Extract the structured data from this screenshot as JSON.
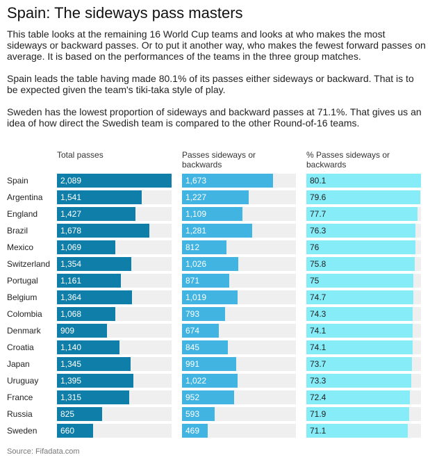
{
  "title": "Spain: The sideways pass masters",
  "intro": [
    "This table looks at the remaining 16 World Cup teams and looks at who makes the most sideways or backward passes. Or to put it another way, who makes the fewest forward passes on average. It is based on the performances of the teams in the three group matches.",
    "Spain leads the table having made 80.1% of its passes either sideways or backward. That is to be expected given the team's tiki-taka style of play.",
    "Sweden has the lowest proportion of sideways and backward passes at 71.1%. That gives us an idea of how direct the Swedish team is compared to the other Round-of-16 teams."
  ],
  "source": "Source: Fifadata.com",
  "colors": {
    "total": "#0f7ea8",
    "sideways": "#41b4e1",
    "pct": "#86ecf8",
    "track": "#efefef"
  },
  "chart_data": {
    "type": "bar",
    "orientation": "horizontal",
    "categories": [
      "Spain",
      "Argentina",
      "England",
      "Brazil",
      "Mexico",
      "Switzerland",
      "Portugal",
      "Belgium",
      "Colombia",
      "Denmark",
      "Croatia",
      "Japan",
      "Uruguay",
      "France",
      "Russia",
      "Sweden"
    ],
    "series": [
      {
        "name": "Total passes",
        "max": 2089,
        "values": [
          2089,
          1541,
          1427,
          1678,
          1069,
          1354,
          1161,
          1364,
          1068,
          909,
          1140,
          1345,
          1395,
          1315,
          825,
          660
        ],
        "labels": [
          "2,089",
          "1,541",
          "1,427",
          "1,678",
          "1,069",
          "1,354",
          "1,161",
          "1,364",
          "1,068",
          "909",
          "1,140",
          "1,345",
          "1,395",
          "1,315",
          "825",
          "660"
        ]
      },
      {
        "name": "Passes sideways or backwards",
        "max": 2089,
        "values": [
          1673,
          1227,
          1109,
          1281,
          812,
          1026,
          871,
          1019,
          793,
          674,
          845,
          991,
          1022,
          952,
          593,
          469
        ],
        "labels": [
          "1,673",
          "1,227",
          "1,109",
          "1,281",
          "812",
          "1,026",
          "871",
          "1,019",
          "793",
          "674",
          "845",
          "991",
          "1,022",
          "952",
          "593",
          "469"
        ]
      },
      {
        "name": "% Passes sideways or backwards",
        "max": 80.1,
        "values": [
          80.1,
          79.6,
          77.7,
          76.3,
          76,
          75.8,
          75,
          74.7,
          74.3,
          74.1,
          74.1,
          73.7,
          73.3,
          72.4,
          71.9,
          71.1
        ],
        "labels": [
          "80.1",
          "79.6",
          "77.7",
          "76.3",
          "76",
          "75.8",
          "75",
          "74.7",
          "74.3",
          "74.1",
          "74.1",
          "73.7",
          "73.3",
          "72.4",
          "71.9",
          "71.1"
        ]
      }
    ]
  }
}
